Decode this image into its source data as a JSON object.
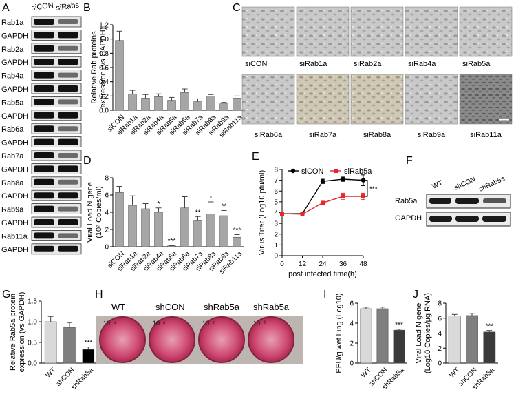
{
  "panel_letters": [
    "A",
    "B",
    "C",
    "D",
    "E",
    "F",
    "G",
    "H",
    "I",
    "J"
  ],
  "panelA": {
    "columns": [
      "siCON",
      "siRabs"
    ],
    "rows": [
      "Rab1a",
      "GAPDH",
      "Rab2a",
      "GAPDH",
      "Rab4a",
      "GAPDH",
      "Rab5a",
      "GAPDH",
      "Rab6a",
      "GAPDH",
      "Rab7a",
      "GAPDH",
      "Rab8a",
      "GAPDH",
      "Rab9a",
      "GAPDH",
      "Rab11a",
      "GAPDH"
    ]
  },
  "panelC": {
    "labels": [
      "siCON",
      "siRab1a",
      "siRab2a",
      "siRab4a",
      "siRab5a",
      "siRab6a",
      "siRab7a",
      "siRab8a",
      "siRab9a",
      "siRab11a"
    ]
  },
  "panelF": {
    "columns": [
      "WT",
      "shCON",
      "shRab5a"
    ],
    "rows": [
      "Rab5a",
      "GAPDH"
    ]
  },
  "panelH": {
    "columns": [
      "WT",
      "shCON",
      "shRab5a",
      "shRab5a"
    ],
    "dilutions": [
      "10⁻⁴",
      "10⁻⁴",
      "10⁻²",
      "10⁻³"
    ]
  },
  "chart_data": [
    {
      "id": "B",
      "type": "bar",
      "ylabel_line1": "Relative Rab proteins",
      "ylabel_line2": "expression (vs GAPDH)",
      "categories": [
        "siCON",
        "siRab1a",
        "siRab2a",
        "siRab4a",
        "siRab5a",
        "siRab6a",
        "siRab7a",
        "siRab8a",
        "siRab9a",
        "siRab11a"
      ],
      "values": [
        0.98,
        0.23,
        0.17,
        0.19,
        0.14,
        0.25,
        0.12,
        0.2,
        0.09,
        0.17
      ],
      "errors": [
        0.13,
        0.05,
        0.05,
        0.04,
        0.04,
        0.05,
        0.04,
        0.02,
        0.02,
        0.03
      ],
      "ylim": [
        0,
        1.2
      ],
      "yticks": [
        "0.0",
        "0.2",
        "0.4",
        "0.6",
        "0.8",
        "1.0",
        "1.2"
      ],
      "ytick_values": [
        0,
        0.2,
        0.4,
        0.6,
        0.8,
        1.0,
        1.2
      ],
      "bar_color": "#a6a6a6"
    },
    {
      "id": "D",
      "type": "bar",
      "ylabel_line1": "Viral Load N gene",
      "ylabel_line2": "(10⁷ Copies/ml)",
      "categories": [
        "siCON",
        "siRab1a",
        "siRab2a",
        "siRab4a",
        "siRab5a",
        "siRab6a",
        "siRab7a",
        "siRab8a",
        "siRab9a",
        "siRab11a"
      ],
      "values": [
        6.3,
        4.8,
        4.4,
        4.0,
        0.1,
        4.5,
        3.0,
        3.8,
        3.6,
        1.1
      ],
      "errors": [
        0.7,
        1.1,
        0.6,
        0.5,
        0.05,
        1.3,
        0.5,
        1.4,
        0.6,
        0.3
      ],
      "significance": [
        "",
        "",
        "",
        "*",
        "***",
        "",
        "**",
        "*",
        "**",
        "***"
      ],
      "ylim": [
        0,
        8
      ],
      "yticks": [
        "0",
        "2",
        "4",
        "6",
        "8"
      ],
      "ytick_values": [
        0,
        2,
        4,
        6,
        8
      ],
      "bar_color": "#a6a6a6"
    },
    {
      "id": "E",
      "type": "line",
      "ylabel": "Virus Titer (Log10 pfu/ml)",
      "xlabel": "post infected time(h)",
      "x": [
        0,
        12,
        24,
        36,
        48
      ],
      "xticks": [
        "0",
        "12",
        "24",
        "36",
        "48"
      ],
      "ylim": [
        0,
        8
      ],
      "yticks": [
        "0",
        "1",
        "2",
        "3",
        "4",
        "5",
        "6",
        "7",
        "8"
      ],
      "ytick_values": [
        0,
        1,
        2,
        3,
        4,
        5,
        6,
        7,
        8
      ],
      "significance": "***",
      "series": [
        {
          "name": "siCON",
          "values": [
            3.9,
            3.9,
            6.9,
            7.1,
            7.0
          ],
          "errors": [
            0.1,
            0.1,
            0.2,
            0.2,
            0.5
          ],
          "color": "#000000"
        },
        {
          "name": "siRab5a",
          "values": [
            3.9,
            3.85,
            4.9,
            5.5,
            5.5
          ],
          "errors": [
            0.1,
            0.1,
            0.15,
            0.3,
            0.3
          ],
          "color": "#e8242c"
        }
      ]
    },
    {
      "id": "G",
      "type": "bar",
      "ylabel_line1": "Relative Rab5a protein",
      "ylabel_line2": "expression (vs GAPDH)",
      "categories": [
        "WT",
        "shCON",
        "shRab5a"
      ],
      "values": [
        1.0,
        0.86,
        0.33
      ],
      "errors": [
        0.13,
        0.12,
        0.06
      ],
      "significance": [
        "",
        "",
        "***"
      ],
      "ylim": [
        0,
        1.5
      ],
      "yticks": [
        "0.0",
        "0.5",
        "1.0",
        "1.5"
      ],
      "ytick_values": [
        0,
        0.5,
        1.0,
        1.5
      ],
      "bar_colors": [
        "#d9d9d9",
        "#7f7f7f",
        "#000000"
      ]
    },
    {
      "id": "I",
      "type": "bar",
      "ylabel_line1": "PFU/g wet lung (Log10)",
      "categories": [
        "WT",
        "shCON",
        "shRab5a"
      ],
      "values": [
        5.45,
        5.45,
        3.3
      ],
      "errors": [
        0.15,
        0.15,
        0.1
      ],
      "significance": [
        "",
        "",
        "***"
      ],
      "ylim": [
        0,
        6
      ],
      "yticks": [
        "0",
        "2",
        "4",
        "6"
      ],
      "ytick_values": [
        0,
        2,
        4,
        6
      ],
      "bar_colors": [
        "#d9d9d9",
        "#7f7f7f",
        "#3a3a3a"
      ]
    },
    {
      "id": "J",
      "type": "bar",
      "ylabel_line1": "Viral Load N gene",
      "ylabel_line2": "(Log10 Copies/μg RNA)",
      "categories": [
        "WT",
        "shCON",
        "shRab5a"
      ],
      "values": [
        6.3,
        6.35,
        4.15
      ],
      "errors": [
        0.2,
        0.3,
        0.2
      ],
      "significance": [
        "",
        "",
        "***"
      ],
      "ylim": [
        0,
        8
      ],
      "yticks": [
        "0",
        "2",
        "4",
        "6",
        "8"
      ],
      "ytick_values": [
        0,
        2,
        4,
        6,
        8
      ],
      "bar_colors": [
        "#d9d9d9",
        "#7f7f7f",
        "#3a3a3a"
      ]
    }
  ]
}
